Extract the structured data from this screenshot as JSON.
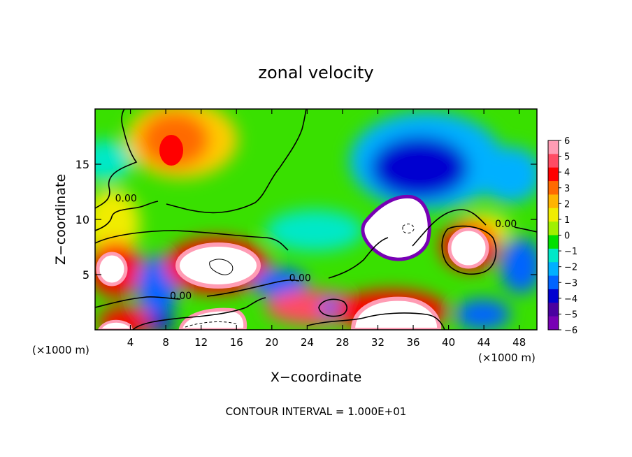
{
  "chart_data": {
    "type": "heatmap",
    "title": "zonal velocity",
    "xlabel": "X−coordinate",
    "ylabel": "Z−coordinate",
    "x_unit_left": "(×1000 m)",
    "x_unit_right": "(×1000 m)",
    "footer": "CONTOUR INTERVAL = 1.000E+01",
    "xlim": [
      0,
      50
    ],
    "ylim": [
      0,
      20
    ],
    "x_ticks": [
      4,
      8,
      12,
      16,
      20,
      24,
      28,
      32,
      36,
      40,
      44,
      48
    ],
    "y_ticks": [
      5,
      10,
      15
    ],
    "colorbar": {
      "levels": [
        6,
        5,
        4,
        3,
        2,
        1,
        0,
        -1,
        -2,
        -3,
        -4,
        -5,
        -6
      ],
      "labels": [
        "6",
        "5",
        "4",
        "3",
        "2",
        "1",
        "0",
        "−1",
        "−2",
        "−3",
        "−4",
        "−5",
        "−6"
      ],
      "colors": [
        "#ff9cb4",
        "#ff4c64",
        "#ff0000",
        "#ff6a00",
        "#ffb400",
        "#f0ec00",
        "#a0f000",
        "#00e000",
        "#00e8c8",
        "#00b0ff",
        "#0064ff",
        "#0000d0",
        "#4a00a0",
        "#7800b4"
      ]
    },
    "contour_labels": [
      {
        "text": "0.00",
        "x": 3.5,
        "y": 11.6
      },
      {
        "text": "0.00",
        "x": 46.5,
        "y": 9.3
      },
      {
        "text": "0.00",
        "x": 23.2,
        "y": 4.4
      },
      {
        "text": "0.00",
        "x": 9.7,
        "y": 2.8
      }
    ],
    "features": [
      {
        "x": 8.5,
        "y": 16.2,
        "v": 5
      },
      {
        "x": 12.5,
        "y": 6.2,
        "v": 8
      },
      {
        "x": 1.5,
        "y": 5.5,
        "v": 8
      },
      {
        "x": 35,
        "y": 9.2,
        "v": -8
      },
      {
        "x": 41.5,
        "y": 7.8,
        "v": 8
      },
      {
        "x": 35,
        "y": 1.5,
        "v": 8
      },
      {
        "x": 14,
        "y": 1.0,
        "v": 8
      },
      {
        "x": 36,
        "y": 14.5,
        "v": -5
      },
      {
        "x": 27,
        "y": 2.3,
        "v": -4
      },
      {
        "x": 5.5,
        "y": 4.0,
        "v": -4
      }
    ]
  }
}
